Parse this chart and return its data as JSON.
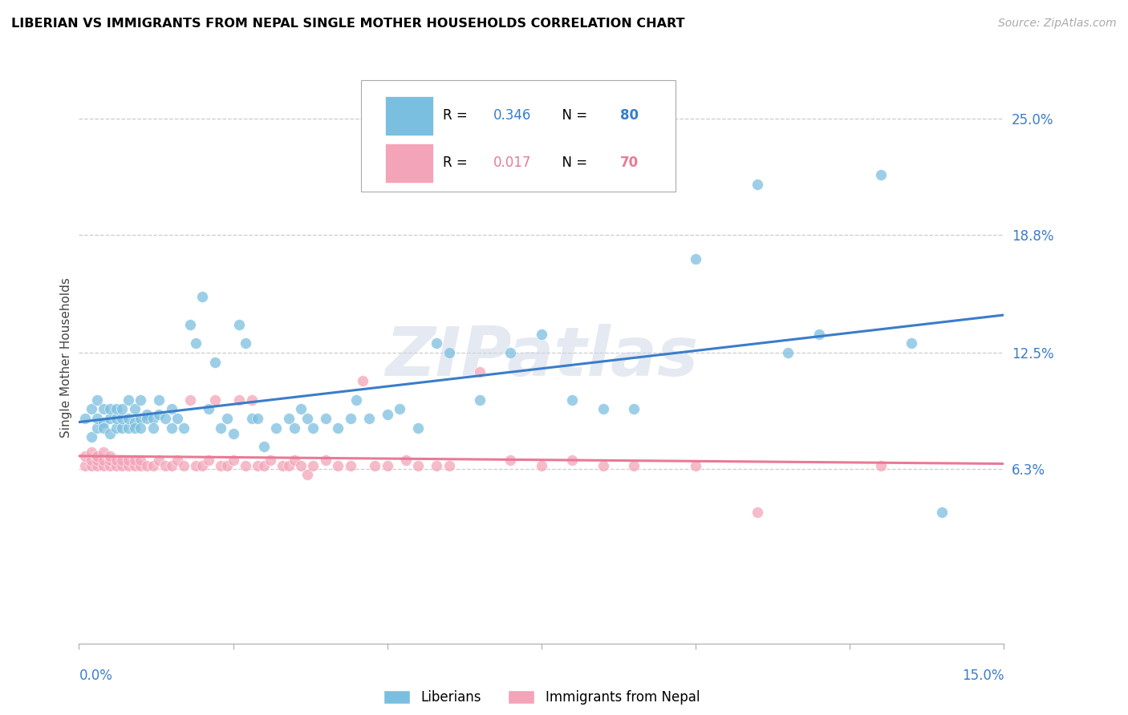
{
  "title": "LIBERIAN VS IMMIGRANTS FROM NEPAL SINGLE MOTHER HOUSEHOLDS CORRELATION CHART",
  "source": "Source: ZipAtlas.com",
  "ylabel": "Single Mother Households",
  "ytick_labels": [
    "25.0%",
    "18.8%",
    "12.5%",
    "6.3%"
  ],
  "ytick_values": [
    0.25,
    0.188,
    0.125,
    0.063
  ],
  "xlim": [
    0.0,
    0.15
  ],
  "ylim": [
    -0.03,
    0.275
  ],
  "liberian_color": "#7bbfe0",
  "nepal_color": "#f4a4b8",
  "blue_line_color": "#3a7dc9",
  "pink_line_color": "#e87a96",
  "grid_color": "#cccccc",
  "watermark": "ZIPatlas",
  "liberian_x": [
    0.001,
    0.002,
    0.002,
    0.003,
    0.003,
    0.003,
    0.004,
    0.004,
    0.004,
    0.005,
    0.005,
    0.005,
    0.006,
    0.006,
    0.006,
    0.007,
    0.007,
    0.007,
    0.008,
    0.008,
    0.008,
    0.009,
    0.009,
    0.009,
    0.01,
    0.01,
    0.01,
    0.011,
    0.011,
    0.012,
    0.012,
    0.013,
    0.013,
    0.014,
    0.015,
    0.015,
    0.016,
    0.017,
    0.018,
    0.019,
    0.02,
    0.021,
    0.022,
    0.023,
    0.024,
    0.025,
    0.026,
    0.027,
    0.028,
    0.029,
    0.03,
    0.032,
    0.034,
    0.035,
    0.036,
    0.037,
    0.038,
    0.04,
    0.042,
    0.044,
    0.045,
    0.047,
    0.05,
    0.052,
    0.055,
    0.058,
    0.06,
    0.065,
    0.07,
    0.075,
    0.08,
    0.085,
    0.09,
    0.1,
    0.11,
    0.115,
    0.12,
    0.13,
    0.135,
    0.14
  ],
  "liberian_y": [
    0.09,
    0.08,
    0.095,
    0.085,
    0.09,
    0.1,
    0.088,
    0.095,
    0.085,
    0.082,
    0.09,
    0.095,
    0.085,
    0.09,
    0.095,
    0.085,
    0.09,
    0.095,
    0.085,
    0.09,
    0.1,
    0.088,
    0.095,
    0.085,
    0.09,
    0.1,
    0.085,
    0.092,
    0.09,
    0.09,
    0.085,
    0.092,
    0.1,
    0.09,
    0.095,
    0.085,
    0.09,
    0.085,
    0.14,
    0.13,
    0.155,
    0.095,
    0.12,
    0.085,
    0.09,
    0.082,
    0.14,
    0.13,
    0.09,
    0.09,
    0.075,
    0.085,
    0.09,
    0.085,
    0.095,
    0.09,
    0.085,
    0.09,
    0.085,
    0.09,
    0.1,
    0.09,
    0.092,
    0.095,
    0.085,
    0.13,
    0.125,
    0.1,
    0.125,
    0.135,
    0.1,
    0.095,
    0.095,
    0.175,
    0.215,
    0.125,
    0.135,
    0.22,
    0.13,
    0.04
  ],
  "nepal_x": [
    0.001,
    0.001,
    0.002,
    0.002,
    0.002,
    0.003,
    0.003,
    0.003,
    0.004,
    0.004,
    0.004,
    0.005,
    0.005,
    0.005,
    0.006,
    0.006,
    0.007,
    0.007,
    0.008,
    0.008,
    0.009,
    0.009,
    0.01,
    0.01,
    0.011,
    0.012,
    0.013,
    0.014,
    0.015,
    0.016,
    0.017,
    0.018,
    0.019,
    0.02,
    0.021,
    0.022,
    0.023,
    0.024,
    0.025,
    0.026,
    0.027,
    0.028,
    0.029,
    0.03,
    0.031,
    0.033,
    0.034,
    0.035,
    0.036,
    0.037,
    0.038,
    0.04,
    0.042,
    0.044,
    0.046,
    0.048,
    0.05,
    0.053,
    0.055,
    0.058,
    0.06,
    0.065,
    0.07,
    0.075,
    0.08,
    0.085,
    0.09,
    0.1,
    0.11,
    0.13
  ],
  "nepal_y": [
    0.065,
    0.07,
    0.065,
    0.068,
    0.072,
    0.065,
    0.068,
    0.07,
    0.065,
    0.068,
    0.072,
    0.065,
    0.068,
    0.07,
    0.065,
    0.068,
    0.065,
    0.068,
    0.065,
    0.068,
    0.065,
    0.068,
    0.065,
    0.068,
    0.065,
    0.065,
    0.068,
    0.065,
    0.065,
    0.068,
    0.065,
    0.1,
    0.065,
    0.065,
    0.068,
    0.1,
    0.065,
    0.065,
    0.068,
    0.1,
    0.065,
    0.1,
    0.065,
    0.065,
    0.068,
    0.065,
    0.065,
    0.068,
    0.065,
    0.06,
    0.065,
    0.068,
    0.065,
    0.065,
    0.11,
    0.065,
    0.065,
    0.068,
    0.065,
    0.065,
    0.065,
    0.115,
    0.068,
    0.065,
    0.068,
    0.065,
    0.065,
    0.065,
    0.04,
    0.065
  ]
}
